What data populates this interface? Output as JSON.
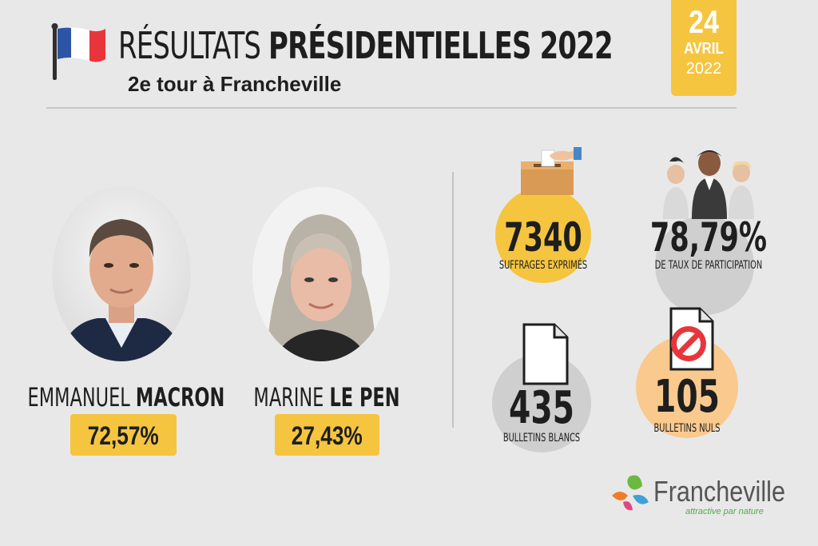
{
  "header": {
    "title_light": "RÉSULTATS",
    "title_bold": "PRÉSIDENTIELLES 2022",
    "subtitle": "2e tour à Francheville"
  },
  "date": {
    "day": "24",
    "month": "AVRIL",
    "year": "2022"
  },
  "candidates": [
    {
      "first_name": "EMMANUEL",
      "last_name": "MACRON",
      "result": "72,57%"
    },
    {
      "first_name": "MARINE",
      "last_name": "LE PEN",
      "result": "27,43%"
    }
  ],
  "stats": {
    "suffrages": {
      "value": "7340",
      "label": "SUFFRAGES EXPRIMÉS",
      "icon": "ballot-box-icon"
    },
    "participation": {
      "value": "78,79%",
      "label": "DE TAUX DE PARTICIPATION",
      "icon": "people-icon"
    },
    "blancs": {
      "value": "435",
      "label": "BULLETINS BLANCS",
      "icon": "blank-ballot-icon"
    },
    "nuls": {
      "value": "105",
      "label": "BULLETINS NULS",
      "icon": "void-ballot-icon"
    }
  },
  "logo": {
    "name": "Francheville",
    "tagline": "attractive par nature"
  },
  "colors": {
    "accent_yellow": "#f5c540",
    "circle_gray": "#cfcfcf",
    "circle_orange": "#f9c98e",
    "background": "#e8e8e8"
  }
}
